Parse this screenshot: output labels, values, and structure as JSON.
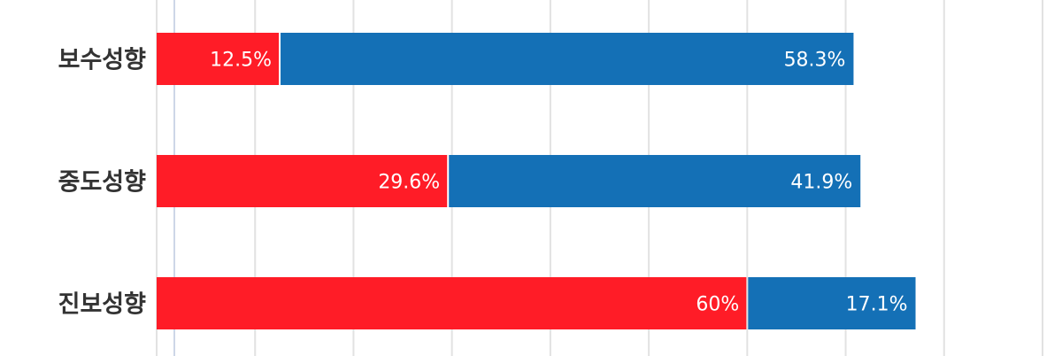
{
  "chart_data": {
    "type": "bar",
    "orientation": "horizontal",
    "stacked": true,
    "categories": [
      "보수성향",
      "중도성향",
      "진보성향"
    ],
    "series": [
      {
        "color": "#ff1c27",
        "values": [
          12.5,
          29.6,
          60
        ],
        "labels": [
          "12.5%",
          "29.6%",
          "60%"
        ]
      },
      {
        "color": "#1470b6",
        "values": [
          58.3,
          41.9,
          17.1
        ],
        "labels": [
          "58.3%",
          "41.9%",
          "17.1%"
        ]
      }
    ],
    "xlim": [
      0,
      90
    ],
    "grid": true,
    "legend": "none"
  }
}
